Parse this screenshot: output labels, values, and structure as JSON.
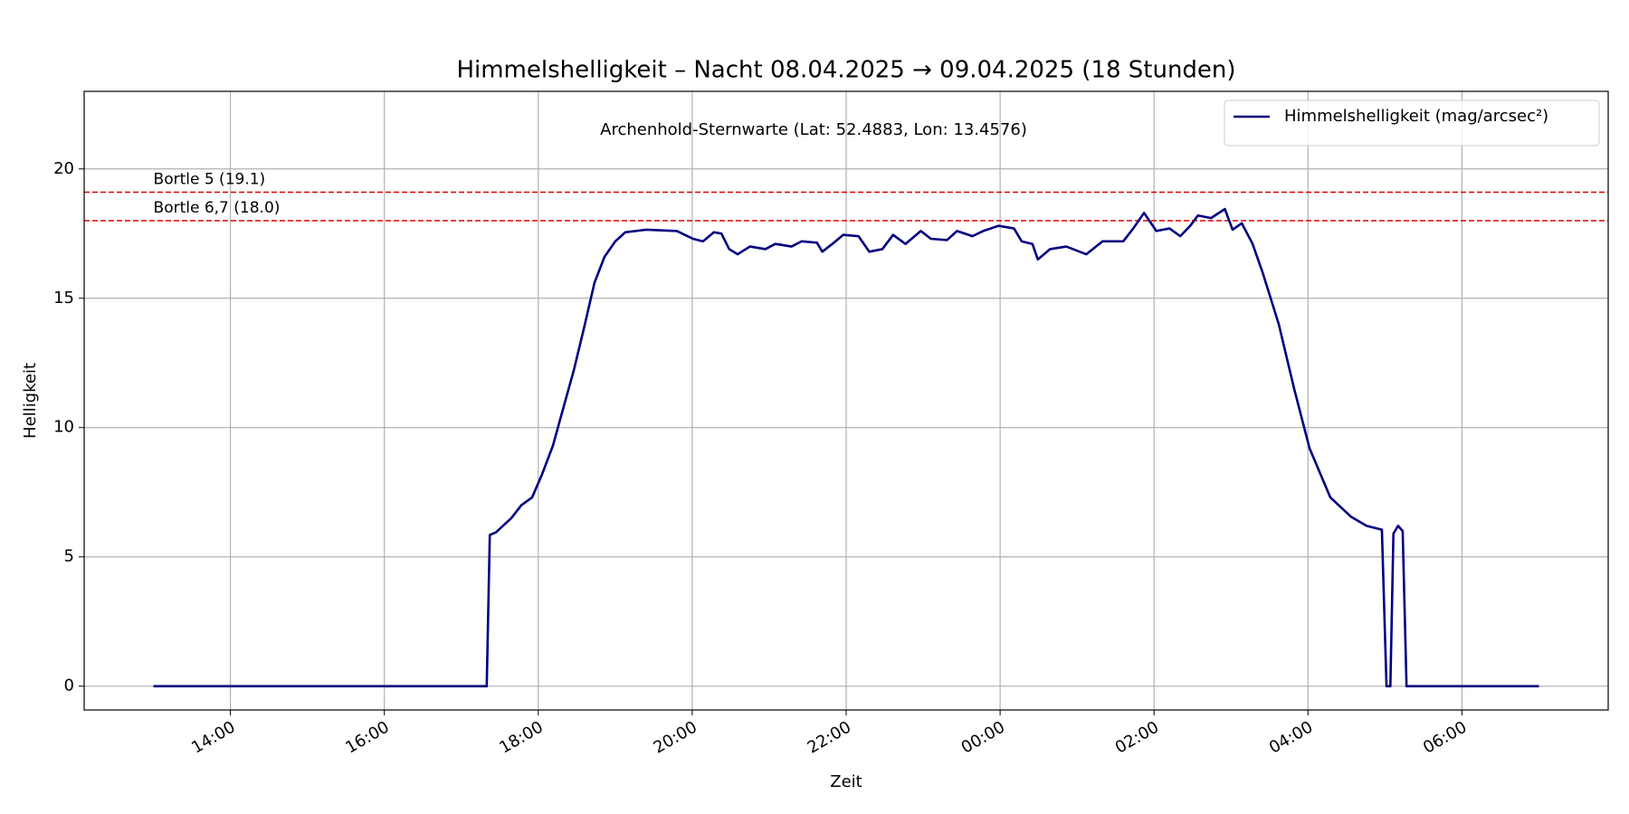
{
  "chart_data": {
    "type": "line",
    "title": "Himmelshelligkeit – Nacht 08.04.2025 → 09.04.2025 (18 Stunden)",
    "subtitle": "Archenhold-Sternwarte (Lat: 52.4883, Lon: 13.4576)",
    "xlabel": "Zeit",
    "ylabel": "Helligkeit",
    "x": [
      13.0,
      17.33,
      17.37,
      17.45,
      17.65,
      17.78,
      17.92,
      18.05,
      18.19,
      18.32,
      18.46,
      18.59,
      18.73,
      18.86,
      19.0,
      19.13,
      19.4,
      19.8,
      20.01,
      20.14,
      20.28,
      20.38,
      20.48,
      20.59,
      20.75,
      20.95,
      21.08,
      21.29,
      21.42,
      21.62,
      21.69,
      21.82,
      21.96,
      22.16,
      22.3,
      22.47,
      22.61,
      22.77,
      22.97,
      23.1,
      23.31,
      23.44,
      23.64,
      23.78,
      23.98,
      24.18,
      24.28,
      24.42,
      24.49,
      24.65,
      24.86,
      25.12,
      25.33,
      25.6,
      25.73,
      25.87,
      26.03,
      26.2,
      26.34,
      26.47,
      26.57,
      26.74,
      26.92,
      27.02,
      27.14,
      27.28,
      27.41,
      27.62,
      27.82,
      28.02,
      28.29,
      28.56,
      28.76,
      28.96,
      29.02,
      29.07,
      29.11,
      29.17,
      29.23,
      29.28,
      31.0
    ],
    "series": [
      {
        "name": "Himmelshelligkeit (mag/arcsec²)",
        "color": "#000080",
        "values": [
          0,
          0,
          5.85,
          5.95,
          6.5,
          7.0,
          7.3,
          8.2,
          9.3,
          10.7,
          12.2,
          13.8,
          15.6,
          16.6,
          17.2,
          17.55,
          17.65,
          17.6,
          17.3,
          17.2,
          17.55,
          17.5,
          16.9,
          16.7,
          17.0,
          16.9,
          17.1,
          17.0,
          17.2,
          17.15,
          16.8,
          17.1,
          17.45,
          17.4,
          16.8,
          16.9,
          17.45,
          17.1,
          17.6,
          17.3,
          17.25,
          17.6,
          17.4,
          17.6,
          17.8,
          17.7,
          17.2,
          17.1,
          16.5,
          16.9,
          17.0,
          16.7,
          17.2,
          17.2,
          17.7,
          18.3,
          17.6,
          17.7,
          17.4,
          17.8,
          18.2,
          18.1,
          18.45,
          17.65,
          17.9,
          17.1,
          16.0,
          14.0,
          11.5,
          9.2,
          7.3,
          6.55,
          6.2,
          6.05,
          0,
          0,
          5.9,
          6.2,
          6.0,
          0,
          0
        ]
      }
    ],
    "reference_lines": [
      {
        "value": 19.1,
        "label": "Bortle 5 (19.1)",
        "color": "#dd0000"
      },
      {
        "value": 18.0,
        "label": "Bortle 6,7 (18.0)",
        "color": "#dd0000"
      }
    ],
    "xlim": [
      12.1,
      31.9
    ],
    "xticks": [
      {
        "value": 14,
        "label": "14:00"
      },
      {
        "value": 16,
        "label": "16:00"
      },
      {
        "value": 18,
        "label": "18:00"
      },
      {
        "value": 20,
        "label": "20:00"
      },
      {
        "value": 22,
        "label": "22:00"
      },
      {
        "value": 24,
        "label": "00:00"
      },
      {
        "value": 26,
        "label": "02:00"
      },
      {
        "value": 28,
        "label": "04:00"
      },
      {
        "value": 30,
        "label": "06:00"
      }
    ],
    "ylim": [
      -0.92,
      23.0
    ],
    "yticks": [
      0,
      5,
      10,
      15,
      20
    ],
    "grid": true,
    "legend": "upper right"
  }
}
